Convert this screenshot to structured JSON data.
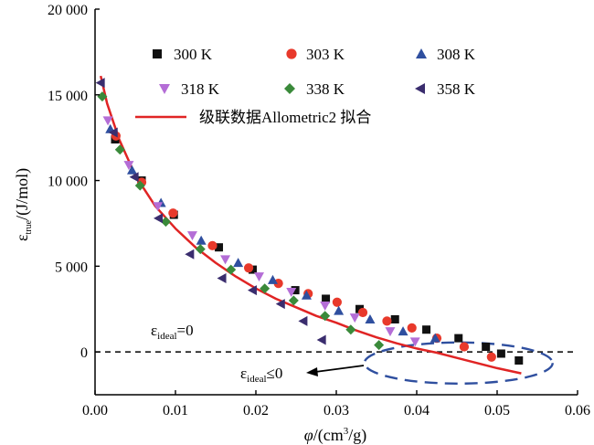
{
  "chart_data": {
    "type": "scatter",
    "xlabel": {
      "symbol": "φ",
      "unit_pre": "/(cm",
      "sup": "3",
      "unit_post": "/g)"
    },
    "ylabel": {
      "main": "ε",
      "sub": "true",
      "unit": "/(J/mol)"
    },
    "xlim": [
      0.0,
      0.06
    ],
    "ylim": [
      -2500,
      20000
    ],
    "xticks": [
      {
        "value": 0.0,
        "label": "0.00"
      },
      {
        "value": 0.01,
        "label": "0.01"
      },
      {
        "value": 0.02,
        "label": "0.02"
      },
      {
        "value": 0.03,
        "label": "0.03"
      },
      {
        "value": 0.04,
        "label": "0.04"
      },
      {
        "value": 0.05,
        "label": "0.05"
      },
      {
        "value": 0.06,
        "label": "0.06"
      }
    ],
    "yticks": [
      {
        "value": 0,
        "label": "0"
      },
      {
        "value": 5000,
        "label": "5 000"
      },
      {
        "value": 10000,
        "label": "10 000"
      },
      {
        "value": 15000,
        "label": "15 000"
      },
      {
        "value": 20000,
        "label": "20 000"
      }
    ],
    "series": [
      {
        "name": "300 K",
        "marker": "square",
        "color": "#111111",
        "x": [
          0.0025,
          0.0058,
          0.0098,
          0.0154,
          0.0196,
          0.0249,
          0.0287,
          0.0329,
          0.0373,
          0.0412,
          0.0452,
          0.0486,
          0.0505,
          0.0527
        ],
        "y": [
          12400,
          10000,
          8000,
          6100,
          4800,
          3600,
          3100,
          2500,
          1900,
          1300,
          800,
          300,
          -100,
          -500
        ]
      },
      {
        "name": "303 K",
        "marker": "circle",
        "color": "#e8392b",
        "x": [
          0.0026,
          0.0058,
          0.0097,
          0.0146,
          0.0191,
          0.0228,
          0.0265,
          0.0301,
          0.0333,
          0.0363,
          0.0394,
          0.0425,
          0.0459,
          0.0493
        ],
        "y": [
          12600,
          9900,
          8100,
          6200,
          4900,
          4000,
          3400,
          2900,
          2300,
          1800,
          1400,
          800,
          300,
          -300
        ]
      },
      {
        "name": "308 K",
        "marker": "triangle-up",
        "color": "#2f4f9f",
        "x": [
          0.0019,
          0.0046,
          0.0082,
          0.0132,
          0.0178,
          0.0221,
          0.0263,
          0.0303,
          0.0342,
          0.0383,
          0.0423
        ],
        "y": [
          13000,
          10600,
          8700,
          6500,
          5200,
          4200,
          3300,
          2400,
          1900,
          1200,
          800
        ]
      },
      {
        "name": "318 K",
        "marker": "triangle-down",
        "color": "#b46dd6",
        "x": [
          0.0016,
          0.0042,
          0.0078,
          0.0121,
          0.0162,
          0.0204,
          0.0244,
          0.0286,
          0.0323,
          0.0367,
          0.0398
        ],
        "y": [
          13500,
          10900,
          8500,
          6800,
          5400,
          4400,
          3500,
          2700,
          2000,
          1200,
          600
        ]
      },
      {
        "name": "338 K",
        "marker": "diamond",
        "color": "#3a8a3a",
        "x": [
          0.0009,
          0.0031,
          0.0056,
          0.0088,
          0.0131,
          0.0169,
          0.0211,
          0.0247,
          0.0286,
          0.0318,
          0.0353
        ],
        "y": [
          14900,
          11800,
          9700,
          7600,
          6000,
          4800,
          3700,
          3000,
          2100,
          1300,
          400
        ]
      },
      {
        "name": "358 K",
        "marker": "triangle-left",
        "color": "#3a2d6e",
        "x": [
          0.0007,
          0.0023,
          0.0049,
          0.0079,
          0.0118,
          0.0158,
          0.0196,
          0.0231,
          0.0259,
          0.0282
        ],
        "y": [
          15700,
          12800,
          10200,
          7800,
          5700,
          4300,
          3600,
          2800,
          1800,
          700
        ]
      }
    ],
    "fit": {
      "name": "级联数据Allometric2 拟合",
      "color": "#e02424",
      "x": [
        0.0007,
        0.0015,
        0.003,
        0.005,
        0.0075,
        0.01,
        0.0125,
        0.015,
        0.0175,
        0.02,
        0.0225,
        0.025,
        0.0275,
        0.03,
        0.0325,
        0.035,
        0.0375,
        0.04,
        0.0425,
        0.045,
        0.0475,
        0.05,
        0.053
      ],
      "y": [
        16100,
        14500,
        12400,
        10300,
        8500,
        7200,
        6100,
        5200,
        4400,
        3700,
        3100,
        2600,
        2100,
        1700,
        1250,
        850,
        500,
        200,
        -50,
        -350,
        -650,
        -950,
        -1250
      ]
    },
    "reference_line": {
      "value": 0,
      "style": "dashed"
    },
    "annotations": {
      "ideal_zero": {
        "main": "ε",
        "sub": "ideal",
        "rest": "=0"
      },
      "ideal_le_zero": {
        "main": "ε",
        "sub": "ideal",
        "rest": "≤0"
      }
    },
    "ellipse_region": {
      "cx": 0.0452,
      "cy": -650,
      "rx": 0.0117,
      "ry": 1200,
      "color": "#2f4f9f"
    },
    "legend_position": "top"
  }
}
